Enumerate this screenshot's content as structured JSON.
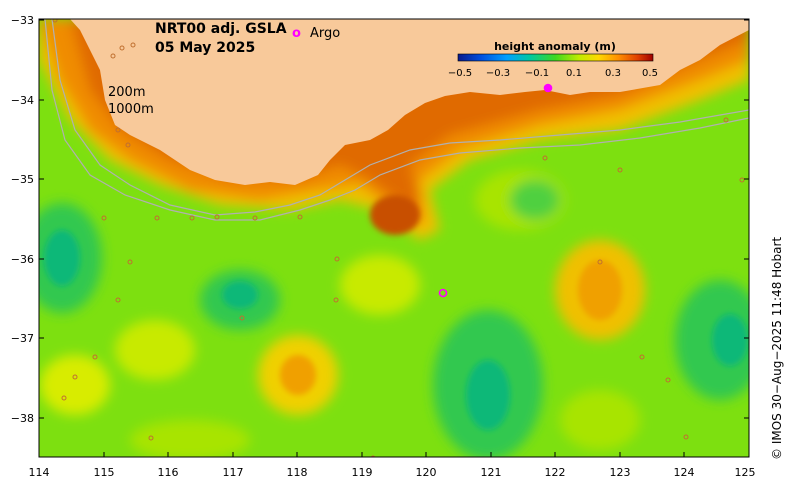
{
  "title": "NRT00 adj. GSLA",
  "date": "05 May 2025",
  "argo_label": "Argo",
  "argo_symbol": "o",
  "colorbar": {
    "title": "height anomaly (m)",
    "ticks": [
      "−0.5",
      "−0.3",
      "−0.1",
      "0.1",
      "0.3",
      "0.5"
    ],
    "colors": [
      "#0a1a8c",
      "#0050e0",
      "#00a0ff",
      "#00d8c8",
      "#00c878",
      "#40d820",
      "#a0e800",
      "#e8f000",
      "#ffc000",
      "#ff8000",
      "#e04000",
      "#a00000"
    ]
  },
  "isobaths": [
    "200m",
    "1000m"
  ],
  "y_ticks": [
    "−33",
    "−34",
    "−35",
    "−36",
    "−37",
    "−38"
  ],
  "x_ticks": [
    "114",
    "115",
    "116",
    "117",
    "118",
    "119",
    "120",
    "121",
    "122",
    "123",
    "124",
    "125"
  ],
  "credit": "© IMOS 30−Aug−2025 11:48 Hobart",
  "colors": {
    "land": "#f8c99a",
    "ocean_base": "#7de010",
    "argo": "#ff00ff",
    "isobath": "#b0b0b0"
  }
}
